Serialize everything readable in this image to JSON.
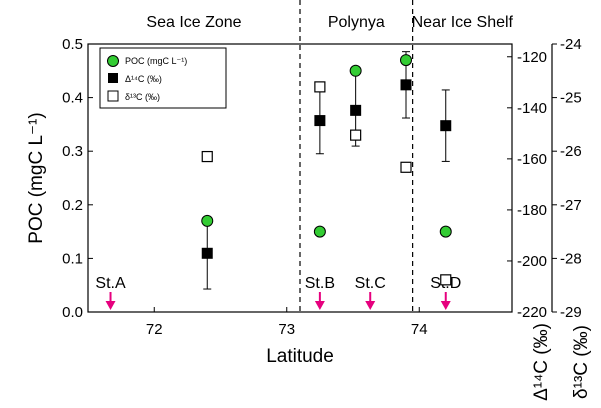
{
  "chart_data": {
    "type": "scatter",
    "xlabel": "Latitude",
    "ylabel": "POC (mgC L⁻¹)",
    "xlim": [
      71.5,
      74.7
    ],
    "x_ticks": [
      72,
      73,
      74
    ],
    "grid": false,
    "legend_position": "top-left",
    "axes": {
      "left": {
        "label": "POC (mgC L⁻¹)",
        "range": [
          0.0,
          0.5
        ],
        "ticks": [
          "0.0",
          "0.1",
          "0.2",
          "0.3",
          "0.4",
          "0.5"
        ]
      },
      "right_inner": {
        "label": "Δ¹⁴C (‰)",
        "range": [
          -220,
          -115
        ],
        "ticks": [
          "-220",
          "-200",
          "-180",
          "-160",
          "-140",
          "-120"
        ]
      },
      "right_outer": {
        "label": "δ¹³C (‰)",
        "range": [
          -29,
          -24
        ],
        "ticks": [
          "-29",
          "-28",
          "-27",
          "-26",
          "-25",
          "-24"
        ]
      }
    },
    "zones": [
      {
        "label": "Sea Ice Zone",
        "x_start": 71.5,
        "x_end": 73.1
      },
      {
        "label": "Polynya",
        "x_start": 73.1,
        "x_end": 73.95
      },
      {
        "label": "Near Ice Shelf",
        "x_start": 73.95,
        "x_end": 74.7
      }
    ],
    "zone_boundaries": [
      73.1,
      73.95
    ],
    "stations": [
      {
        "label": "St.A",
        "x": 71.67
      },
      {
        "label": "St.B",
        "x": 73.25
      },
      {
        "label": "St.C",
        "x": 73.63
      },
      {
        "label": "St.D",
        "x": 74.2
      }
    ],
    "series": [
      {
        "name": "POC (mgC L⁻¹)",
        "axis": "left",
        "marker": "circle-filled",
        "color": "#33cc33",
        "points": [
          {
            "x": 72.4,
            "y": 0.17
          },
          {
            "x": 73.25,
            "y": 0.15
          },
          {
            "x": 73.52,
            "y": 0.45
          },
          {
            "x": 73.9,
            "y": 0.47
          },
          {
            "x": 74.2,
            "y": 0.15
          }
        ]
      },
      {
        "name": "Δ¹⁴C (‰)",
        "axis": "right_inner",
        "marker": "square-filled",
        "color": "#000000",
        "points": [
          {
            "x": 72.4,
            "y": -197,
            "err": 14
          },
          {
            "x": 73.25,
            "y": -145,
            "err": 13
          },
          {
            "x": 73.52,
            "y": -141,
            "err": 14
          },
          {
            "x": 73.9,
            "y": -131,
            "err": 13
          },
          {
            "x": 74.2,
            "y": -147,
            "err": 14
          }
        ]
      },
      {
        "name": "δ¹³C (‰)",
        "axis": "right_outer",
        "marker": "square-open",
        "color": "#000000",
        "points": [
          {
            "x": 72.4,
            "y": -26.1
          },
          {
            "x": 73.25,
            "y": -24.8
          },
          {
            "x": 73.52,
            "y": -25.7
          },
          {
            "x": 73.9,
            "y": -26.3
          },
          {
            "x": 74.2,
            "y": -28.4
          }
        ]
      }
    ],
    "colors": {
      "station_arrow": "#e6007e",
      "poc_marker": "#33cc33"
    }
  }
}
